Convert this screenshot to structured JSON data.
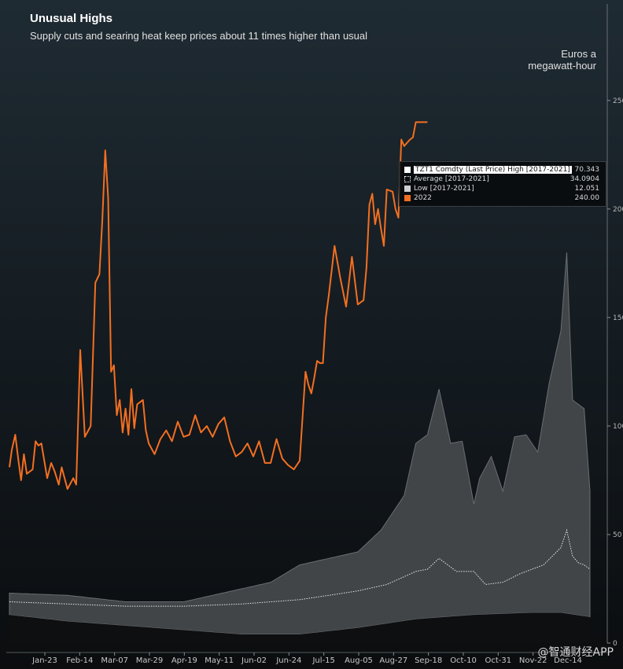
{
  "chart_data": {
    "type": "area",
    "title": "Unusual Highs",
    "subtitle": "Supply cuts and searing heat keep prices about 11 times higher than usual",
    "ylabel_line1": "Euros a",
    "ylabel_line2": "megawatt-hour",
    "ylim": [
      0,
      280
    ],
    "y_ticks": [
      0,
      50,
      100,
      150,
      200,
      250
    ],
    "x_ticks": [
      "Jan-23",
      "Feb-14",
      "Mar-07",
      "Mar-29",
      "Apr-19",
      "May-11",
      "Jun-02",
      "Jun-24",
      "Jul-15",
      "Aug-05",
      "Aug-27",
      "Sep-18",
      "Oct-10",
      "Oct-31",
      "Nov-22",
      "Dec-14"
    ],
    "legend": [
      {
        "label": "TZT1 Comdty (Last Price) High [2017-2021]",
        "value": "70.343",
        "color": "#ffffff"
      },
      {
        "label": "Average [2017-2021]",
        "value": "34.0904",
        "color": "#ffffff"
      },
      {
        "label": "Low [2017-2021]",
        "value": "12.051",
        "color": "#cfcfcf"
      },
      {
        "label": "2022",
        "value": "240.00",
        "color": "#f36f21"
      }
    ],
    "series": [
      {
        "name": "High [2017-2021]",
        "x": [
          0,
          0.1,
          0.2,
          0.3,
          0.35,
          0.45,
          0.5,
          0.55,
          0.6,
          0.64,
          0.68,
          0.7,
          0.72,
          0.74,
          0.76,
          0.78,
          0.8,
          0.81,
          0.83,
          0.85,
          0.87,
          0.89,
          0.91,
          0.93,
          0.95,
          0.96,
          0.97,
          0.98,
          0.99,
          1.0
        ],
        "values": [
          23,
          22,
          19,
          19,
          22,
          28,
          36,
          39,
          42,
          52,
          68,
          92,
          96,
          117,
          92,
          93,
          64,
          76,
          86,
          70,
          95,
          96,
          88,
          120,
          144,
          180,
          112,
          110,
          108,
          70
        ]
      },
      {
        "name": "Average [2017-2021]",
        "x": [
          0,
          0.1,
          0.2,
          0.3,
          0.4,
          0.5,
          0.55,
          0.6,
          0.65,
          0.7,
          0.72,
          0.74,
          0.77,
          0.8,
          0.82,
          0.85,
          0.88,
          0.92,
          0.95,
          0.96,
          0.97,
          0.98,
          0.99,
          1.0
        ],
        "values": [
          19,
          18,
          17,
          17,
          18,
          20,
          22,
          24,
          27,
          33,
          34,
          39,
          33,
          33,
          27,
          28,
          32,
          36,
          44,
          52,
          40,
          37,
          36,
          34
        ]
      },
      {
        "name": "Low [2017-2021]",
        "x": [
          0,
          0.1,
          0.2,
          0.3,
          0.4,
          0.5,
          0.6,
          0.7,
          0.8,
          0.9,
          0.95,
          1.0
        ],
        "values": [
          13,
          10,
          8,
          6,
          4,
          4,
          7,
          11,
          13,
          14,
          14,
          12
        ]
      },
      {
        "name": "2022",
        "x": [
          0,
          0.004,
          0.01,
          0.015,
          0.02,
          0.025,
          0.03,
          0.04,
          0.045,
          0.05,
          0.055,
          0.065,
          0.072,
          0.078,
          0.085,
          0.09,
          0.1,
          0.11,
          0.115,
          0.122,
          0.13,
          0.14,
          0.148,
          0.155,
          0.16,
          0.165,
          0.17,
          0.175,
          0.18,
          0.185,
          0.19,
          0.195,
          0.2,
          0.205,
          0.21,
          0.215,
          0.22,
          0.23,
          0.235,
          0.24,
          0.25,
          0.26,
          0.27,
          0.28,
          0.29,
          0.3,
          0.31,
          0.32,
          0.33,
          0.34,
          0.35,
          0.36,
          0.37,
          0.38,
          0.39,
          0.4,
          0.41,
          0.42,
          0.43,
          0.44,
          0.45,
          0.46,
          0.47,
          0.48,
          0.49,
          0.5,
          0.51,
          0.515,
          0.52,
          0.525,
          0.53,
          0.535,
          0.54,
          0.545,
          0.55,
          0.56,
          0.57,
          0.58,
          0.59,
          0.6,
          0.605,
          0.61,
          0.615,
          0.62,
          0.625,
          0.63,
          0.635,
          0.64,
          0.645,
          0.65,
          0.66,
          0.665,
          0.67,
          0.675,
          0.68,
          0.69,
          0.695,
          0.7,
          0.705,
          0.71,
          0.715,
          0.72
        ],
        "values": [
          81,
          89,
          96,
          85,
          75,
          87,
          78,
          80,
          93,
          91,
          92,
          76,
          83,
          79,
          73,
          81,
          71,
          76,
          73,
          135,
          95,
          100,
          166,
          170,
          195,
          227,
          205,
          125,
          128,
          105,
          112,
          97,
          108,
          96,
          117,
          99,
          110,
          112,
          98,
          92,
          87,
          94,
          98,
          93,
          102,
          95,
          96,
          105,
          97,
          100,
          95,
          101,
          104,
          93,
          86,
          88,
          92,
          86,
          93,
          83,
          83,
          94,
          85,
          82,
          80,
          84,
          125,
          119,
          115,
          122,
          130,
          129,
          129,
          150,
          160,
          183,
          168,
          155,
          178,
          156,
          157,
          158,
          173,
          202,
          207,
          193,
          200,
          191,
          183,
          209,
          208,
          200,
          196,
          232,
          229,
          232,
          233,
          240,
          240,
          240,
          240,
          240
        ]
      }
    ],
    "legend_placement": "top-right"
  },
  "watermark": "@智通财经APP"
}
